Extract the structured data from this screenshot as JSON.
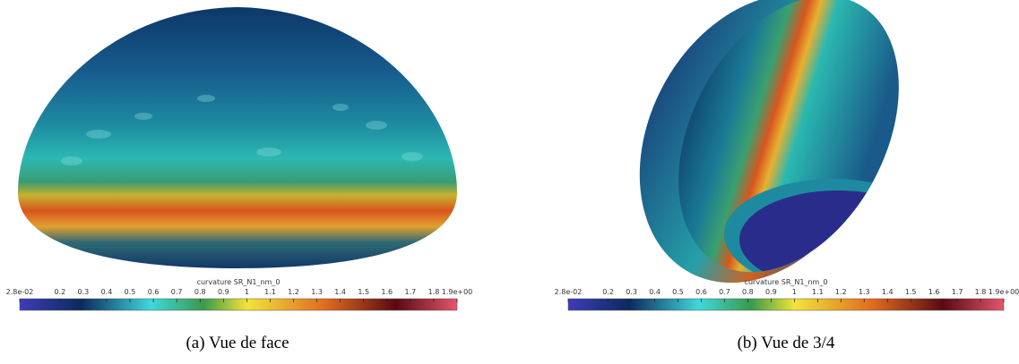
{
  "panels": [
    {
      "colorbar": {
        "title": "curvature SR_N1_nm_0",
        "range": [
          0.028,
          1.9
        ],
        "ticks": [
          {
            "value": 0.028,
            "label": "2.8e-02"
          },
          0.2,
          0.3,
          0.4,
          0.5,
          0.6,
          0.7,
          0.8,
          0.9,
          1,
          1.1,
          1.2,
          1.3,
          1.4,
          1.5,
          1.6,
          1.7,
          1.8,
          {
            "value": 1.9,
            "label": "1.9e+00"
          }
        ]
      },
      "caption": "(a) Vue de face"
    },
    {
      "colorbar": {
        "title": "curvature SR_N1_nm_0",
        "range": [
          0.028,
          1.9
        ],
        "ticks": [
          {
            "value": 0.028,
            "label": "2.8e-02"
          },
          0.2,
          0.3,
          0.4,
          0.5,
          0.6,
          0.7,
          0.8,
          0.9,
          1,
          1.1,
          1.2,
          1.3,
          1.4,
          1.5,
          1.6,
          1.7,
          1.8,
          {
            "value": 1.9,
            "label": "1.9e+00"
          }
        ]
      },
      "caption": "(b) Vue de 3/4"
    }
  ]
}
